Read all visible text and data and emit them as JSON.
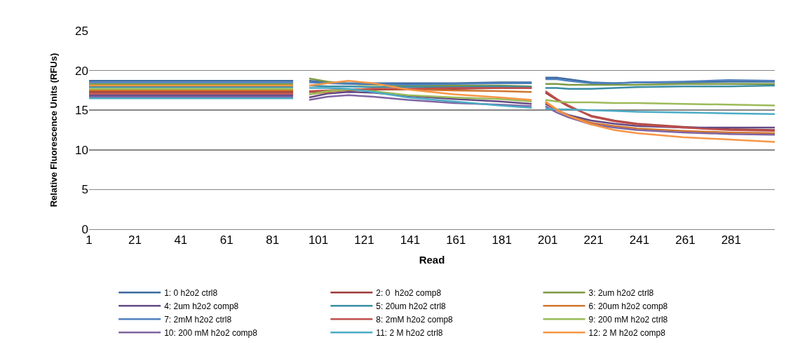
{
  "chart_data": {
    "type": "line",
    "xlabel": "Read",
    "ylabel": "Relative Fluorescence Units (RFUs)",
    "x": [
      1,
      30,
      60,
      90,
      93,
      97,
      105,
      114,
      125,
      140,
      160,
      180,
      194,
      197,
      200,
      205,
      210,
      220,
      230,
      240,
      260,
      280,
      300
    ],
    "xlim": [
      1,
      300
    ],
    "xticks": [
      1,
      21,
      41,
      61,
      81,
      101,
      121,
      141,
      161,
      181,
      201,
      221,
      241,
      261,
      281
    ],
    "ylim": [
      0,
      25
    ],
    "yticks": [
      0,
      5,
      10,
      15,
      20,
      25
    ],
    "grid": "y",
    "legend": "bottom",
    "marker": "none",
    "line_style": "solid",
    "series": [
      {
        "name": "1: 0 h2o2 ctrl8",
        "color": "#3d6aa1",
        "values": [
          18.7,
          18.7,
          18.7,
          18.7,
          null,
          18.7,
          18.5,
          18.4,
          18.4,
          18.4,
          18.4,
          18.5,
          18.5,
          null,
          19.1,
          19.1,
          18.9,
          18.5,
          18.4,
          18.5,
          18.5,
          18.6,
          18.6
        ]
      },
      {
        "name": "2: 0  h2o2 comp8",
        "color": "#9e3b38",
        "values": [
          17.3,
          17.3,
          17.3,
          17.3,
          null,
          17.3,
          17.4,
          17.5,
          17.6,
          17.6,
          17.7,
          17.8,
          17.8,
          null,
          17.2,
          16.3,
          15.5,
          14.3,
          13.7,
          13.3,
          12.9,
          12.6,
          12.5
        ]
      },
      {
        "name": "3: 2um h2o2 ctrl8",
        "color": "#7d9a43",
        "values": [
          18.3,
          18.3,
          18.3,
          18.3,
          null,
          19.0,
          18.6,
          18.3,
          18.2,
          18.1,
          18.1,
          18.1,
          18.0,
          null,
          18.3,
          18.3,
          18.2,
          18.2,
          18.2,
          18.2,
          18.3,
          18.3,
          18.3
        ]
      },
      {
        "name": "4: 2um h2o2 comp8",
        "color": "#644a84",
        "values": [
          16.9,
          16.9,
          16.9,
          16.9,
          null,
          16.6,
          17.1,
          17.3,
          17.2,
          16.8,
          16.4,
          16.1,
          15.8,
          null,
          15.8,
          15.0,
          14.4,
          13.7,
          13.3,
          13.0,
          12.8,
          12.8,
          12.8
        ]
      },
      {
        "name": "5: 20um h2o2 ctrl8",
        "color": "#3a8da5",
        "values": [
          17.9,
          17.9,
          17.9,
          17.9,
          null,
          18.1,
          18.0,
          18.0,
          17.9,
          17.9,
          17.9,
          18.0,
          17.9,
          null,
          17.8,
          17.8,
          17.7,
          17.7,
          17.8,
          17.9,
          18.0,
          18.0,
          18.1
        ]
      },
      {
        "name": "6: 20um h2o2 comp8",
        "color": "#d0762d",
        "values": [
          17.5,
          17.5,
          17.5,
          17.5,
          null,
          17.0,
          17.3,
          17.6,
          17.7,
          17.6,
          17.5,
          17.4,
          17.3,
          null,
          16.0,
          15.0,
          14.3,
          13.4,
          13.0,
          12.7,
          12.4,
          12.2,
          12.1
        ]
      },
      {
        "name": "7: 2mM h2o2 ctrl8",
        "color": "#4f81bd",
        "values": [
          18.5,
          18.5,
          18.5,
          18.5,
          null,
          18.5,
          18.4,
          18.3,
          18.3,
          18.2,
          18.3,
          18.4,
          18.4,
          null,
          18.9,
          18.9,
          18.7,
          18.4,
          18.4,
          18.5,
          18.6,
          18.8,
          18.7
        ]
      },
      {
        "name": "8: 2mM h2o2 comp8",
        "color": "#c0504d",
        "values": [
          17.1,
          17.1,
          17.1,
          17.1,
          null,
          17.4,
          17.5,
          17.6,
          17.7,
          17.7,
          17.8,
          17.8,
          17.8,
          null,
          17.4,
          16.4,
          15.6,
          14.2,
          13.6,
          13.2,
          12.8,
          12.5,
          12.4
        ]
      },
      {
        "name": "9: 200 mM h2o2 ctrl8",
        "color": "#9bbb59",
        "values": [
          17.7,
          17.7,
          17.7,
          17.7,
          null,
          17.0,
          17.4,
          17.6,
          17.4,
          16.9,
          16.6,
          16.4,
          16.1,
          null,
          16.3,
          16.1,
          16.0,
          16.0,
          15.9,
          15.9,
          15.8,
          15.7,
          15.6
        ]
      },
      {
        "name": "10: 200 mM h2o2 comp8",
        "color": "#8064a2",
        "values": [
          16.7,
          16.7,
          16.7,
          16.7,
          null,
          16.3,
          16.7,
          16.9,
          16.7,
          16.3,
          15.9,
          15.7,
          15.5,
          null,
          15.5,
          14.7,
          14.1,
          13.2,
          12.8,
          12.5,
          12.2,
          12.0,
          11.9
        ]
      },
      {
        "name": "11: 2 M h2o2 ctrl8",
        "color": "#4bacc6",
        "values": [
          16.5,
          16.5,
          16.5,
          16.5,
          null,
          17.8,
          17.8,
          17.7,
          17.3,
          16.6,
          16.1,
          15.6,
          15.3,
          null,
          15.2,
          15.1,
          15.1,
          15.0,
          14.9,
          14.8,
          14.7,
          14.6,
          14.5
        ]
      },
      {
        "name": "12: 2 M h2o2 comp8",
        "color": "#f79646",
        "values": [
          18.1,
          18.1,
          18.1,
          18.1,
          null,
          18.1,
          18.4,
          18.7,
          18.4,
          17.6,
          17.0,
          16.6,
          16.3,
          null,
          16.1,
          15.1,
          14.3,
          13.2,
          12.5,
          12.1,
          11.6,
          11.3,
          11.0
        ]
      }
    ]
  }
}
